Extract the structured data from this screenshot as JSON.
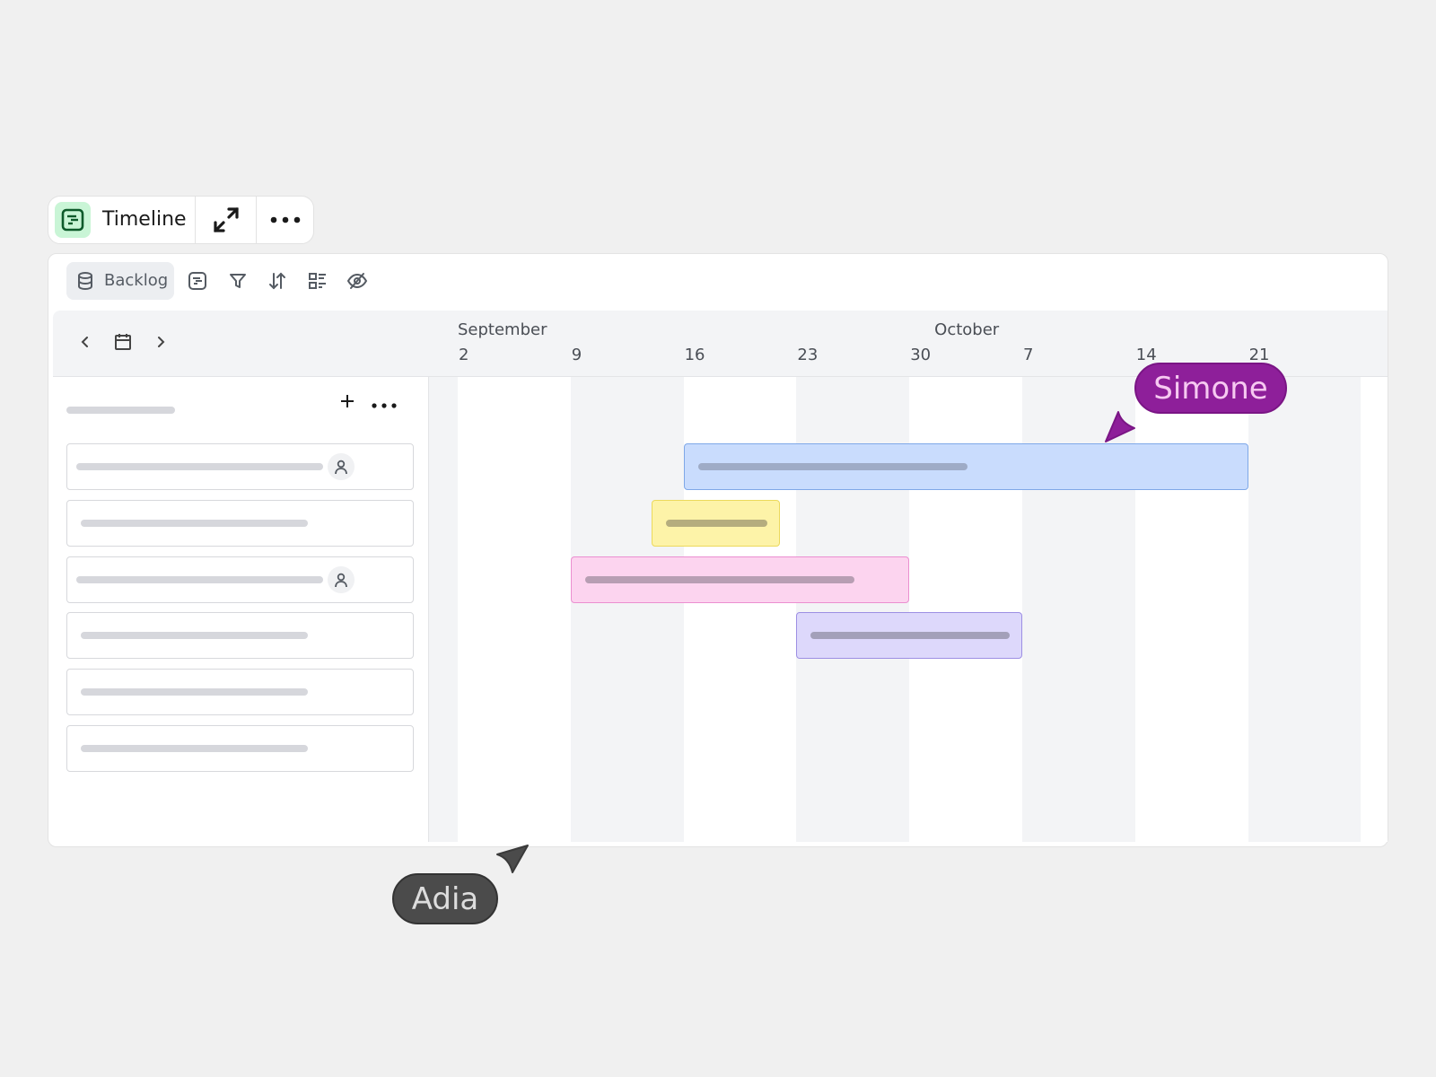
{
  "tabbar": {
    "title": "Timeline",
    "icon": "timeline-icon",
    "expand_icon": "expand-icon",
    "more_icon": "more-horizontal-icon"
  },
  "toolbar": {
    "backlog_label": "Backlog",
    "icons": [
      "database-icon",
      "timeline-icon",
      "filter-icon",
      "sort-icon",
      "group-icon",
      "hide-icon"
    ]
  },
  "timeline": {
    "months": [
      {
        "label": "September",
        "date": "2024-09-02"
      },
      {
        "label": "October",
        "date": "2024-10-01"
      }
    ],
    "days": [
      "2",
      "9",
      "16",
      "23",
      "30",
      "7",
      "14",
      "21"
    ],
    "bars": [
      {
        "color": "#c9dcfd",
        "border": "#7fa8e8",
        "skel": "#9eabc6",
        "start": "2024-09-16",
        "end": "2024-10-21"
      },
      {
        "color": "#fdf3a8",
        "border": "#ecd95c",
        "skel": "#b5ad7e",
        "start": "2024-09-14",
        "end": "2024-09-22"
      },
      {
        "color": "#fcd4ef",
        "border": "#eb8fd0",
        "skel": "#b79eb3",
        "start": "2024-09-09",
        "end": "2024-09-30"
      },
      {
        "color": "#ddd8fb",
        "border": "#9d8fe3",
        "skel": "#a3a0b9",
        "start": "2024-09-23",
        "end": "2024-10-07"
      }
    ]
  },
  "list": {
    "rows": [
      {
        "avatar": true
      },
      {
        "avatar": false
      },
      {
        "avatar": true
      },
      {
        "avatar": false
      },
      {
        "avatar": false
      },
      {
        "avatar": false
      }
    ]
  },
  "cursors": [
    {
      "name": "Simone",
      "color": "#8e1f9a",
      "text_color": "#f6c9f1"
    },
    {
      "name": "Adia",
      "color": "#4b4b4b",
      "text_color": "#dddddd"
    }
  ]
}
